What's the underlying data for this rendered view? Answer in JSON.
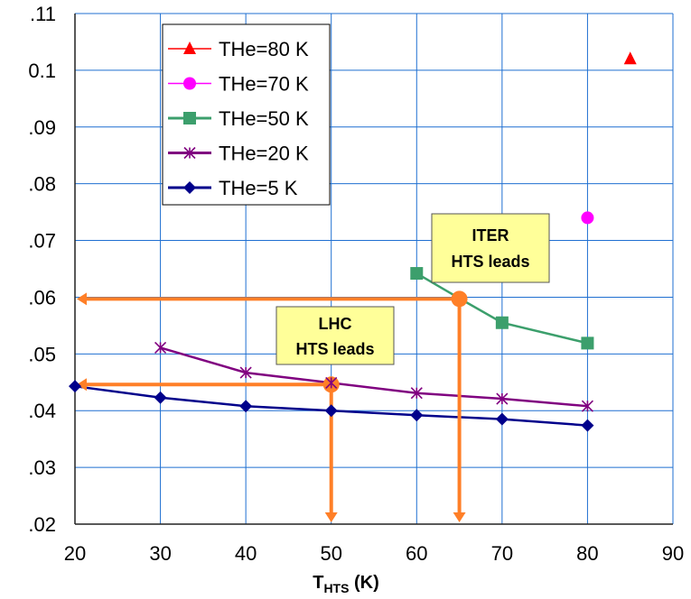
{
  "chart_data": {
    "type": "line",
    "xlabel": "T",
    "xlabel_sub": "HTS",
    "xlabel_unit": "(K)",
    "ylabel": "",
    "xlim": [
      20,
      90
    ],
    "ylim": [
      0.02,
      0.11
    ],
    "x_ticks": [
      20,
      30,
      40,
      50,
      60,
      70,
      80,
      90
    ],
    "x_tick_labels": [
      "20",
      "30",
      "40",
      "50",
      "60",
      "70",
      "80",
      "90"
    ],
    "y_ticks": [
      0.02,
      0.03,
      0.04,
      0.05,
      0.06,
      0.07,
      0.08,
      0.09,
      0.1,
      0.11
    ],
    "y_tick_labels": [
      ".02",
      ".03",
      ".04",
      ".05",
      ".06",
      ".07",
      ".08",
      ".09",
      "0.1",
      ".11"
    ],
    "grid": true,
    "legend_position": "top-left",
    "series": [
      {
        "name": "THe=80 K",
        "color": "#ff0000",
        "marker": "triangle",
        "line": false,
        "points": [
          [
            85,
            0.102
          ]
        ]
      },
      {
        "name": "THe=70 K",
        "color": "#ff00ff",
        "marker": "circle",
        "line": false,
        "points": [
          [
            80,
            0.074
          ]
        ]
      },
      {
        "name": "THe=50 K",
        "color": "#3c9f6c",
        "marker": "square",
        "line": true,
        "points": [
          [
            60,
            0.0642
          ],
          [
            65,
            0.0598
          ],
          [
            70,
            0.0555
          ],
          [
            80,
            0.0519
          ]
        ]
      },
      {
        "name": "THe=20 K",
        "color": "#800080",
        "marker": "asterisk",
        "line": true,
        "points": [
          [
            30,
            0.0511
          ],
          [
            40,
            0.0467
          ],
          [
            50,
            0.0449
          ],
          [
            60,
            0.0431
          ],
          [
            70,
            0.0421
          ],
          [
            80,
            0.0408
          ]
        ]
      },
      {
        "name": "THe=5 K",
        "color": "#00008b",
        "marker": "diamond",
        "line": true,
        "points": [
          [
            20,
            0.0443
          ],
          [
            30,
            0.0423
          ],
          [
            40,
            0.0408
          ],
          [
            50,
            0.04
          ],
          [
            60,
            0.0392
          ],
          [
            70,
            0.0385
          ],
          [
            80,
            0.0374
          ]
        ]
      }
    ],
    "annotations": [
      {
        "lines": [
          "LHC",
          "HTS leads"
        ],
        "point": [
          50,
          0.0446
        ],
        "color": "#ff7f27"
      },
      {
        "lines": [
          "ITER",
          "HTS leads"
        ],
        "point": [
          65,
          0.0597
        ],
        "color": "#ff7f27"
      }
    ]
  }
}
